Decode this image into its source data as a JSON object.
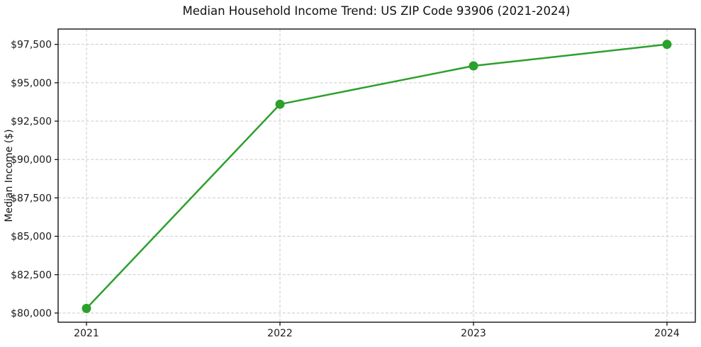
{
  "chart_data": {
    "type": "line",
    "title": "Median Household Income Trend: US ZIP Code 93906 (2021-2024)",
    "xlabel": "",
    "ylabel": "Median Income ($)",
    "categories": [
      "2021",
      "2022",
      "2023",
      "2024"
    ],
    "series": [
      {
        "name": "median-household-income",
        "values": [
          80300,
          93600,
          96100,
          97500
        ],
        "color": "#2ca02c",
        "marker": "circle"
      }
    ],
    "yticks": [
      80000,
      82500,
      85000,
      87500,
      90000,
      92500,
      95000,
      97500
    ],
    "ytick_labels": [
      "$80,000",
      "$82,500",
      "$85,000",
      "$87,500",
      "$90,000",
      "$92,500",
      "$95,000",
      "$97,500"
    ],
    "ylim": [
      79400,
      98500
    ],
    "grid": true,
    "grid_style": "dashed",
    "legend_position": "none",
    "colors": {
      "line": "#2ca02c",
      "grid": "#c9c9c9",
      "axis": "#000000",
      "text": "#1a1a1a",
      "background": "#ffffff"
    }
  }
}
